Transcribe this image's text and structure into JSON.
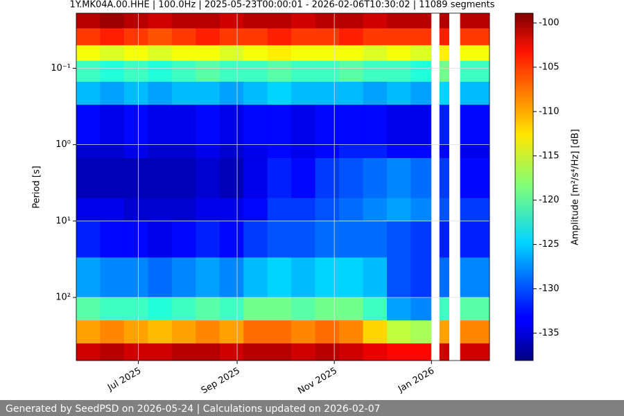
{
  "chart_data": {
    "type": "spectrogram",
    "title": "1Y.MK04A.00.HHE | 100.0Hz | 2025-05-23T00:00:01 - 2026-02-06T10:30:02 | 11089 segments",
    "y_label": "Period [s]",
    "colorbar_label": "Amplitude [m²/s⁴/Hz] [dB]",
    "footer": "Generated by SeedPSD on 2026-05-24 | Calculations updated on 2026-02-07",
    "y_log": true,
    "y_inverted": true,
    "grid": true,
    "colormap": "jet",
    "xlim": [
      "2025-05-23T00:00:01",
      "2026-02-06T10:30:02"
    ],
    "xticks": [
      {
        "value": "2025-07-01",
        "label": "Jul 2025"
      },
      {
        "value": "2025-09-01",
        "label": "Sep 2025"
      },
      {
        "value": "2025-11-01",
        "label": "Nov 2025"
      },
      {
        "value": "2026-01-01",
        "label": "Jan 2026"
      }
    ],
    "ylim": [
      0.019,
      670
    ],
    "yticks": [
      {
        "value": 0.1,
        "label": "10⁻¹"
      },
      {
        "value": 1,
        "label": "10⁰"
      },
      {
        "value": 10,
        "label": "10¹"
      },
      {
        "value": 100,
        "label": "10²"
      }
    ],
    "clim": [
      -138.1,
      -98.9
    ],
    "cticks": [
      -100,
      -105,
      -110,
      -115,
      -120,
      -125,
      -130,
      -135
    ],
    "x_bins": [
      "2025-05-23T00:00:01",
      "2025-06-07",
      "2025-06-22",
      "2025-07-07",
      "2025-07-22",
      "2025-08-06",
      "2025-08-21",
      "2025-09-05",
      "2025-09-20",
      "2025-10-05",
      "2025-10-20",
      "2025-11-04",
      "2025-11-19",
      "2025-12-04",
      "2025-12-19",
      "2026-01-01",
      "2026-01-06",
      "2026-01-12",
      "2026-01-19",
      "2026-02-06T10:30:02"
    ],
    "y_bins": [
      0.019,
      0.03,
      0.05,
      0.08,
      0.15,
      0.3,
      1,
      1.5,
      5,
      10,
      30,
      100,
      200,
      400,
      670
    ],
    "values": [
      [
        -101,
        -106,
        -114,
        -121,
        -126,
        -133,
        -135,
        -136,
        -134,
        -132,
        -127,
        -120,
        -110,
        -102
      ],
      [
        -100,
        -105,
        -115,
        -122,
        -127,
        -134,
        -135,
        -136,
        -134,
        -133,
        -128,
        -121,
        -109,
        -101
      ],
      [
        -101,
        -106,
        -114,
        -121,
        -126,
        -133,
        -134,
        -136,
        -135,
        -133,
        -128,
        -121,
        -110,
        -102
      ],
      [
        -102,
        -107,
        -115,
        -122,
        -127,
        -134,
        -135,
        -136,
        -135,
        -134,
        -129,
        -122,
        -111,
        -102
      ],
      [
        -101,
        -106,
        -114,
        -121,
        -126,
        -134,
        -135,
        -136,
        -135,
        -133,
        -128,
        -121,
        -110,
        -101
      ],
      [
        -101,
        -105,
        -114,
        -120,
        -126,
        -133,
        -134,
        -135,
        -134,
        -132,
        -127,
        -120,
        -109,
        -101
      ],
      [
        -102,
        -106,
        -115,
        -121,
        -127,
        -134,
        -135,
        -136,
        -134,
        -133,
        -128,
        -121,
        -110,
        -102
      ],
      [
        -101,
        -106,
        -114,
        -121,
        -126,
        -133,
        -134,
        -134,
        -133,
        -131,
        -126,
        -119,
        -108,
        -101
      ],
      [
        -101,
        -105,
        -113,
        -120,
        -125,
        -133,
        -133,
        -132,
        -131,
        -130,
        -125,
        -119,
        -108,
        -101
      ],
      [
        -102,
        -106,
        -114,
        -121,
        -126,
        -134,
        -134,
        -133,
        -131,
        -130,
        -126,
        -120,
        -109,
        -102
      ],
      [
        -101,
        -106,
        -114,
        -121,
        -126,
        -133,
        -133,
        -131,
        -130,
        -129,
        -125,
        -119,
        -108,
        -101
      ],
      [
        -101,
        -105,
        -114,
        -120,
        -126,
        -133,
        -132,
        -130,
        -129,
        -129,
        -125,
        -119,
        -109,
        -102
      ],
      [
        -102,
        -106,
        -115,
        -121,
        -127,
        -133,
        -132,
        -129,
        -128,
        -129,
        -126,
        -121,
        -112,
        -103
      ],
      [
        -101,
        -106,
        -114,
        -121,
        -126,
        -134,
        -133,
        -128,
        -127,
        -130,
        -130,
        -127,
        -116,
        -104
      ],
      [
        -101,
        -106,
        -115,
        -122,
        -127,
        -134,
        -133,
        -129,
        -128,
        -131,
        -131,
        -128,
        -117,
        -104
      ],
      null,
      [
        -101,
        -105,
        -113,
        -119,
        -125,
        -132,
        -133,
        -131,
        -130,
        -132,
        -129,
        -121,
        -110,
        -102
      ],
      null,
      [
        -101,
        -106,
        -114,
        -121,
        -126,
        -133,
        -134,
        -133,
        -131,
        -132,
        -128,
        -120,
        -109,
        -102
      ]
    ]
  }
}
